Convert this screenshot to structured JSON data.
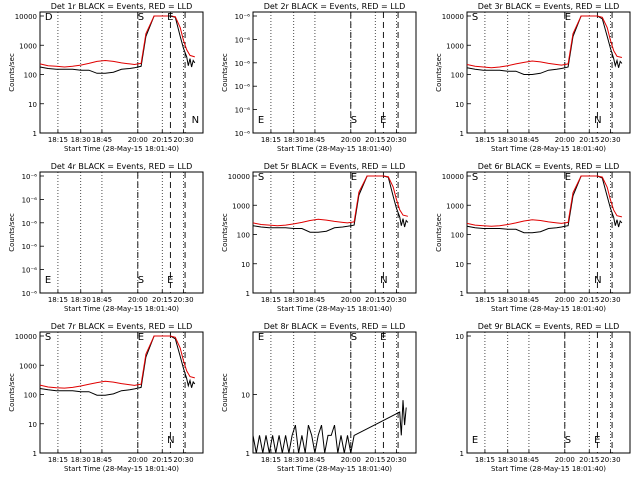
{
  "figure": {
    "colors": {
      "events": "#000000",
      "lld": "#e00000",
      "frame": "#000000"
    }
  },
  "chart_data": [
    {
      "type": "line",
      "title": "Det 1r  BLACK = Events, RED = LLD",
      "xlabel": "Start Time (28-May-15 18:01:40)",
      "ylabel": "Counts/sec",
      "xticks": [
        "18:15",
        "18:30",
        "18:45",
        "20:00",
        "20:15",
        "20:30"
      ],
      "yscale": "log",
      "ylim": [
        1,
        10000
      ],
      "yticks": [
        "1",
        "10",
        "100",
        "1000",
        "10000"
      ],
      "markers": [
        "D",
        "S",
        "E",
        "N"
      ],
      "series": [
        {
          "color": "#000000",
          "x": [
            0.0,
            0.05,
            0.1,
            0.15,
            0.2,
            0.25,
            0.3,
            0.35,
            0.4,
            0.45,
            0.5,
            0.55,
            0.58,
            0.6,
            0.62,
            0.65,
            0.7,
            0.75,
            0.8,
            0.83,
            0.86,
            0.88,
            0.9,
            0.91,
            0.92,
            0.93,
            0.94,
            0.95
          ],
          "y": [
            180,
            160,
            150,
            150,
            150,
            140,
            140,
            110,
            110,
            120,
            150,
            160,
            170,
            180,
            190,
            2000,
            10000,
            10000,
            10000,
            9000,
            2000,
            800,
            400,
            200,
            350,
            180,
            300,
            250
          ]
        },
        {
          "color": "#e00000",
          "x": [
            0.0,
            0.05,
            0.1,
            0.15,
            0.2,
            0.25,
            0.3,
            0.35,
            0.4,
            0.45,
            0.5,
            0.55,
            0.58,
            0.6,
            0.62,
            0.65,
            0.7,
            0.75,
            0.8,
            0.83,
            0.86,
            0.88,
            0.9,
            0.92,
            0.95
          ],
          "y": [
            230,
            200,
            190,
            180,
            190,
            210,
            240,
            280,
            300,
            280,
            250,
            230,
            220,
            230,
            240,
            2500,
            10000,
            10000,
            10000,
            9500,
            4000,
            1500,
            700,
            450,
            400
          ]
        }
      ]
    },
    {
      "type": "line",
      "title": "Det 2r  BLACK = Events, RED = LLD",
      "xlabel": "Start Time (28-May-15 18:01:40)",
      "ylabel": "Counts/sec",
      "xticks": [
        "18:15",
        "18:30",
        "18:45",
        "20:00",
        "20:15",
        "20:30"
      ],
      "yscale": "log",
      "yticks": [
        "10⁻⁶",
        "10⁻⁶",
        "10⁻⁶",
        "10⁻⁶",
        "10⁻⁶",
        "10⁻⁶"
      ],
      "markers": [
        "E",
        "S",
        "E"
      ],
      "series": []
    },
    {
      "type": "line",
      "title": "Det 3r  BLACK = Events, RED = LLD",
      "xlabel": "Start Time (28-May-15 18:01:40)",
      "ylabel": "Counts/sec",
      "xticks": [
        "18:15",
        "18:30",
        "18:45",
        "20:00",
        "20:15",
        "20:30"
      ],
      "yscale": "log",
      "ylim": [
        1,
        10000
      ],
      "yticks": [
        "1",
        "10",
        "100",
        "1000",
        "10000"
      ],
      "markers": [
        "S",
        "E",
        "N"
      ],
      "series": [
        {
          "color": "#000000",
          "x": [
            0.0,
            0.05,
            0.1,
            0.15,
            0.2,
            0.25,
            0.3,
            0.35,
            0.4,
            0.45,
            0.5,
            0.55,
            0.58,
            0.6,
            0.62,
            0.65,
            0.7,
            0.75,
            0.8,
            0.83,
            0.86,
            0.88,
            0.9,
            0.91,
            0.92,
            0.93,
            0.94,
            0.95
          ],
          "y": [
            170,
            150,
            140,
            140,
            140,
            130,
            130,
            100,
            100,
            110,
            140,
            150,
            160,
            170,
            180,
            2000,
            10000,
            10000,
            10000,
            8000,
            2000,
            800,
            350,
            200,
            300,
            170,
            280,
            240
          ]
        },
        {
          "color": "#e00000",
          "x": [
            0.0,
            0.05,
            0.1,
            0.15,
            0.2,
            0.25,
            0.3,
            0.35,
            0.4,
            0.45,
            0.5,
            0.55,
            0.58,
            0.6,
            0.62,
            0.65,
            0.7,
            0.75,
            0.8,
            0.83,
            0.86,
            0.88,
            0.9,
            0.92,
            0.95
          ],
          "y": [
            220,
            190,
            180,
            170,
            180,
            200,
            230,
            260,
            290,
            270,
            240,
            220,
            210,
            220,
            230,
            2500,
            10000,
            10000,
            10000,
            9000,
            4000,
            1500,
            650,
            420,
            380
          ]
        }
      ]
    },
    {
      "type": "line",
      "title": "Det 4r  BLACK = Events, RED = LLD",
      "xlabel": "Start Time (28-May-15 18:01:40)",
      "ylabel": "Counts/sec",
      "xticks": [
        "18:15",
        "18:30",
        "18:45",
        "20:00",
        "20:15",
        "20:30"
      ],
      "yscale": "log",
      "yticks": [
        "10⁻⁶",
        "10⁻⁶",
        "10⁻⁶",
        "10⁻⁶",
        "10⁻⁶",
        "10⁻⁶"
      ],
      "markers": [
        "E",
        "S",
        "E"
      ],
      "series": []
    },
    {
      "type": "line",
      "title": "Det 5r  BLACK = Events, RED = LLD",
      "xlabel": "Start Time (28-May-15 18:01:40)",
      "ylabel": "Counts/sec",
      "xticks": [
        "18:15",
        "18:30",
        "18:45",
        "20:00",
        "20:15",
        "20:30"
      ],
      "yscale": "log",
      "ylim": [
        1,
        10000
      ],
      "yticks": [
        "1",
        "10",
        "100",
        "1000",
        "10000"
      ],
      "markers": [
        "S",
        "E",
        "N"
      ],
      "series": [
        {
          "color": "#000000",
          "x": [
            0.0,
            0.05,
            0.1,
            0.15,
            0.2,
            0.25,
            0.3,
            0.35,
            0.4,
            0.45,
            0.5,
            0.55,
            0.58,
            0.6,
            0.62,
            0.65,
            0.7,
            0.75,
            0.8,
            0.83,
            0.86,
            0.88,
            0.9,
            0.91,
            0.92,
            0.93,
            0.94,
            0.95
          ],
          "y": [
            200,
            180,
            170,
            170,
            170,
            160,
            160,
            120,
            120,
            130,
            170,
            180,
            190,
            200,
            210,
            2200,
            10000,
            10000,
            10000,
            9000,
            2000,
            800,
            400,
            200,
            350,
            180,
            300,
            260
          ]
        },
        {
          "color": "#e00000",
          "x": [
            0.0,
            0.05,
            0.1,
            0.15,
            0.2,
            0.25,
            0.3,
            0.35,
            0.4,
            0.45,
            0.5,
            0.55,
            0.58,
            0.6,
            0.62,
            0.65,
            0.7,
            0.75,
            0.8,
            0.83,
            0.86,
            0.88,
            0.9,
            0.92,
            0.95
          ],
          "y": [
            250,
            220,
            210,
            200,
            210,
            230,
            260,
            300,
            330,
            310,
            280,
            260,
            250,
            260,
            270,
            2800,
            10000,
            10000,
            10000,
            9500,
            4200,
            1600,
            700,
            460,
            420
          ]
        }
      ]
    },
    {
      "type": "line",
      "title": "Det 6r  BLACK = Events, RED = LLD",
      "xlabel": "Start Time (28-May-15 18:01:40)",
      "ylabel": "Counts/sec",
      "xticks": [
        "18:15",
        "18:30",
        "18:45",
        "20:00",
        "20:15",
        "20:30"
      ],
      "yscale": "log",
      "ylim": [
        1,
        10000
      ],
      "yticks": [
        "1",
        "10",
        "100",
        "1000",
        "10000"
      ],
      "markers": [
        "S",
        "E",
        "N"
      ],
      "series": [
        {
          "color": "#000000",
          "x": [
            0.0,
            0.05,
            0.1,
            0.15,
            0.2,
            0.25,
            0.3,
            0.35,
            0.4,
            0.45,
            0.5,
            0.55,
            0.58,
            0.6,
            0.62,
            0.65,
            0.7,
            0.75,
            0.8,
            0.83,
            0.86,
            0.88,
            0.9,
            0.91,
            0.92,
            0.93,
            0.94,
            0.95
          ],
          "y": [
            190,
            170,
            160,
            160,
            160,
            150,
            150,
            115,
            115,
            125,
            160,
            170,
            180,
            190,
            200,
            2100,
            10000,
            10000,
            10000,
            8500,
            2000,
            800,
            380,
            200,
            320,
            180,
            290,
            250
          ]
        },
        {
          "color": "#e00000",
          "x": [
            0.0,
            0.05,
            0.1,
            0.15,
            0.2,
            0.25,
            0.3,
            0.35,
            0.4,
            0.45,
            0.5,
            0.55,
            0.58,
            0.6,
            0.62,
            0.65,
            0.7,
            0.75,
            0.8,
            0.83,
            0.86,
            0.88,
            0.9,
            0.92,
            0.95
          ],
          "y": [
            240,
            210,
            200,
            190,
            200,
            220,
            250,
            290,
            320,
            300,
            270,
            250,
            240,
            250,
            260,
            2700,
            10000,
            10000,
            10000,
            9200,
            4100,
            1550,
            680,
            440,
            400
          ]
        }
      ]
    },
    {
      "type": "line",
      "title": "Det 7r  BLACK = Events, RED = LLD",
      "xlabel": "Start Time (28-May-15 18:01:40)",
      "ylabel": "Counts/sec",
      "xticks": [
        "18:15",
        "18:30",
        "18:45",
        "20:00",
        "20:15",
        "20:30"
      ],
      "yscale": "log",
      "ylim": [
        1,
        10000
      ],
      "yticks": [
        "1",
        "10",
        "100",
        "1000",
        "10000"
      ],
      "markers": [
        "S",
        "E",
        "N"
      ],
      "series": [
        {
          "color": "#000000",
          "x": [
            0.0,
            0.05,
            0.1,
            0.15,
            0.2,
            0.25,
            0.3,
            0.35,
            0.4,
            0.45,
            0.5,
            0.55,
            0.58,
            0.6,
            0.62,
            0.65,
            0.7,
            0.75,
            0.8,
            0.83,
            0.86,
            0.88,
            0.9,
            0.91,
            0.92,
            0.93,
            0.94,
            0.95
          ],
          "y": [
            160,
            145,
            135,
            135,
            135,
            125,
            125,
            95,
            95,
            105,
            135,
            145,
            155,
            165,
            175,
            1900,
            10000,
            10000,
            10000,
            8000,
            2000,
            800,
            350,
            200,
            300,
            170,
            270,
            230
          ]
        },
        {
          "color": "#e00000",
          "x": [
            0.0,
            0.05,
            0.1,
            0.15,
            0.2,
            0.25,
            0.3,
            0.35,
            0.4,
            0.45,
            0.5,
            0.55,
            0.58,
            0.6,
            0.62,
            0.65,
            0.7,
            0.75,
            0.8,
            0.83,
            0.86,
            0.88,
            0.9,
            0.92,
            0.95
          ],
          "y": [
            210,
            180,
            170,
            165,
            175,
            195,
            225,
            255,
            285,
            265,
            235,
            215,
            205,
            215,
            225,
            2400,
            10000,
            10000,
            10000,
            9000,
            3900,
            1450,
            640,
            410,
            370
          ]
        }
      ]
    },
    {
      "type": "line",
      "title": "Det 8r  BLACK = Events, RED = LLD",
      "xlabel": "Start Time (28-May-15 18:01:40)",
      "ylabel": "Counts/sec",
      "xticks": [
        "18:15",
        "18:30",
        "18:45",
        "20:00",
        "20:15",
        "20:30"
      ],
      "yscale": "log",
      "ylim": [
        1,
        100
      ],
      "yticks": [
        "1",
        "10"
      ],
      "markers": [
        "E",
        "S",
        "E"
      ],
      "series": [
        {
          "color": "#000000",
          "x": [
            0.0,
            0.02,
            0.04,
            0.06,
            0.08,
            0.1,
            0.12,
            0.14,
            0.16,
            0.18,
            0.2,
            0.22,
            0.24,
            0.26,
            0.28,
            0.3,
            0.32,
            0.34,
            0.36,
            0.38,
            0.4,
            0.42,
            0.44,
            0.46,
            0.48,
            0.5,
            0.52,
            0.54,
            0.56,
            0.58,
            0.6,
            0.62,
            0.9,
            0.91,
            0.92,
            0.93,
            0.94
          ],
          "y": [
            2,
            1,
            2,
            1,
            2,
            1,
            2,
            1,
            2,
            1,
            2,
            1,
            2,
            3,
            1,
            2,
            1,
            3,
            2,
            1,
            2,
            3,
            1,
            2,
            2,
            3,
            1,
            2,
            1,
            2,
            1,
            2,
            5,
            2,
            8,
            3,
            6
          ]
        }
      ]
    },
    {
      "type": "line",
      "title": "Det 9r  BLACK = Events, RED = LLD",
      "xlabel": "Start Time (28-May-15 18:01:40)",
      "ylabel": "",
      "xticks": [
        "18:15",
        "18:30",
        "18:45",
        "20:00",
        "20:15",
        "20:30"
      ],
      "yscale": "log",
      "ylim": [
        1,
        10
      ],
      "yticks": [
        "1",
        "10"
      ],
      "markers": [
        "E",
        "S",
        "E"
      ],
      "series": []
    }
  ]
}
